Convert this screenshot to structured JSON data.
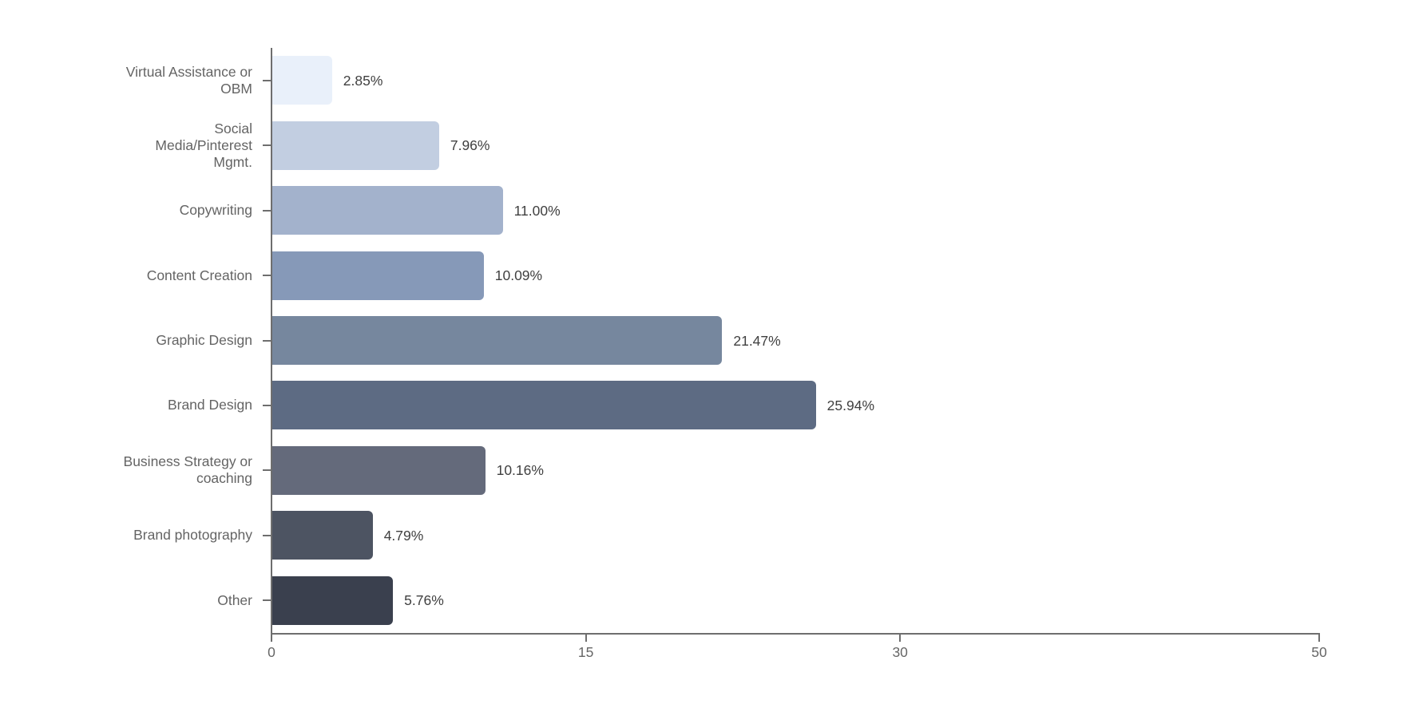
{
  "chart_data": {
    "type": "bar",
    "orientation": "horizontal",
    "title": "",
    "xlabel": "",
    "ylabel": "",
    "xlim": [
      0,
      50
    ],
    "x_ticks": [
      0,
      15,
      30,
      50
    ],
    "x_tick_labels": [
      "0",
      "15",
      "30",
      "50"
    ],
    "grid": false,
    "legend": false,
    "categories": [
      "Virtual Assistance or OBM",
      "Social Media/Pinterest Mgmt.",
      "Copywriting",
      "Content Creation",
      "Graphic Design",
      "Brand Design",
      "Business Strategy or coaching",
      "Brand photography",
      "Other"
    ],
    "category_label_lines": [
      [
        "Virtual Assistance or",
        "OBM"
      ],
      [
        "Social",
        "Media/Pinterest",
        "Mgmt."
      ],
      [
        "Copywriting"
      ],
      [
        "Content Creation"
      ],
      [
        "Graphic Design"
      ],
      [
        "Brand Design"
      ],
      [
        "Business Strategy or",
        "coaching"
      ],
      [
        "Brand photography"
      ],
      [
        "Other"
      ]
    ],
    "values": [
      2.85,
      7.96,
      11.0,
      10.09,
      21.47,
      25.94,
      10.16,
      4.79,
      5.76
    ],
    "value_labels": [
      "2.85%",
      "7.96%",
      "11.00%",
      "10.09%",
      "21.47%",
      "25.94%",
      "10.16%",
      "4.79%",
      "5.76%"
    ],
    "bar_colors": [
      "#e9f0fa",
      "#c2cee1",
      "#a3b2cc",
      "#8699b8",
      "#76879e",
      "#5d6b83",
      "#646a7b",
      "#4d5462",
      "#3a404e"
    ],
    "axis_color": "#6e6e6e",
    "category_label_color": "#646464",
    "value_label_color": "#404040",
    "tick_label_color": "#666666",
    "background_color": "#ffffff"
  }
}
